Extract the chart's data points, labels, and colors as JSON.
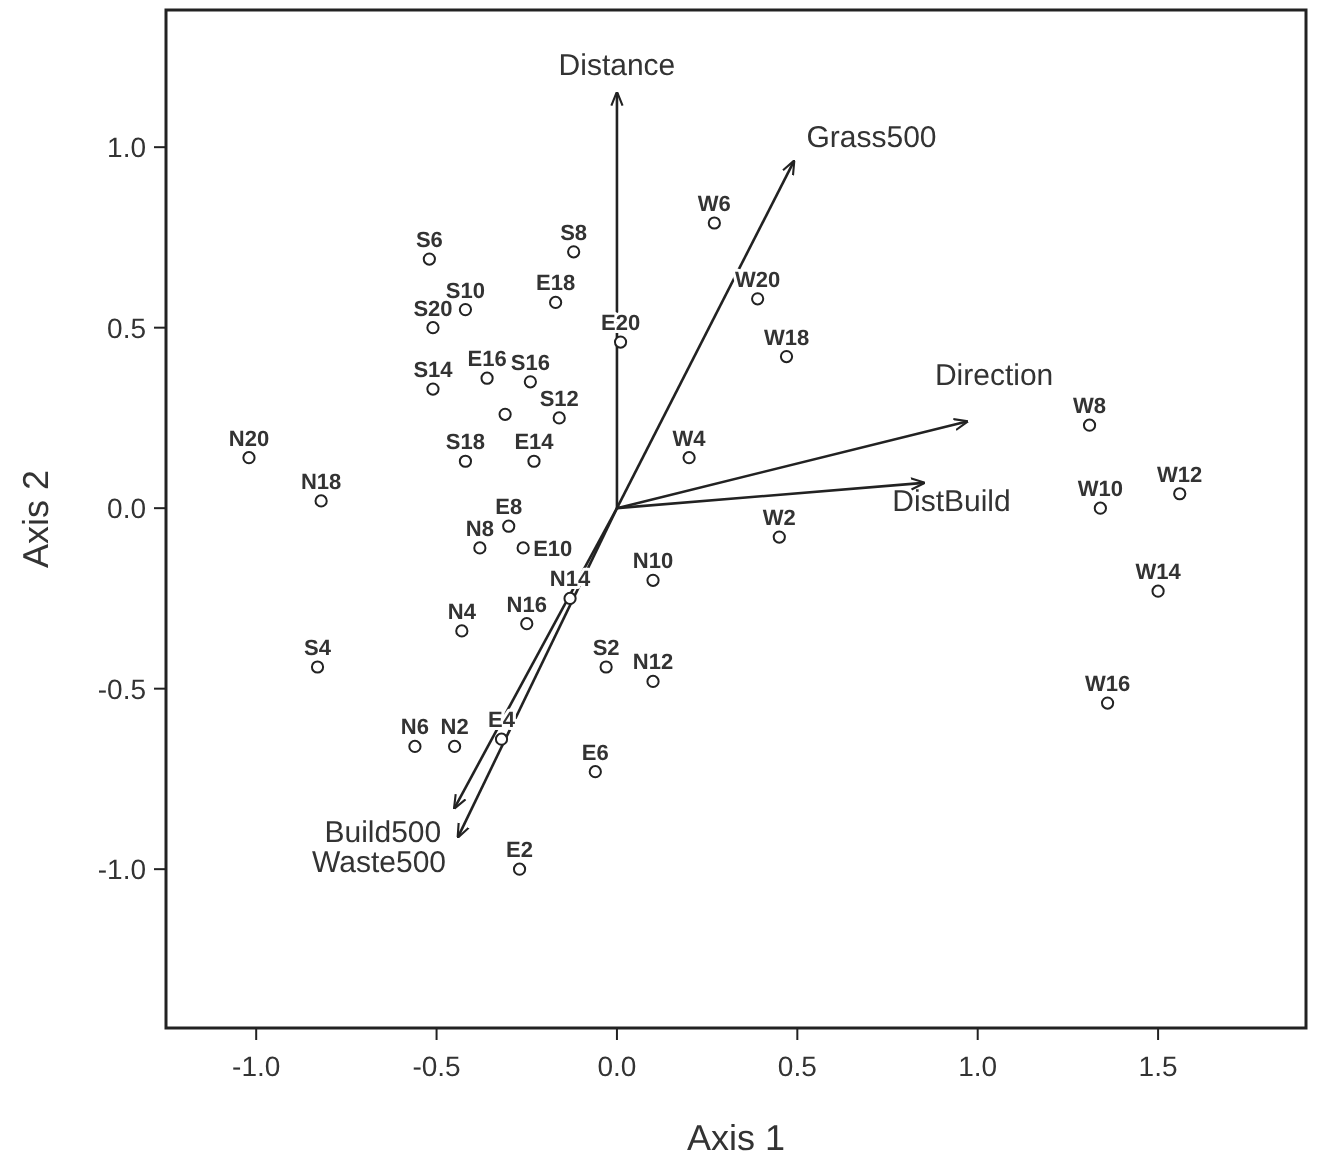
{
  "chart_data": {
    "type": "scatter",
    "xlabel": "Axis 1",
    "ylabel": "Axis 2",
    "xlim": [
      -1.25,
      1.91
    ],
    "ylim": [
      -1.44,
      1.38
    ],
    "xticks": [
      {
        "value": -1,
        "label": "-1.0"
      },
      -0.5,
      {
        "value": 0,
        "label": "0.0"
      },
      0.5,
      {
        "value": 1,
        "label": "1.0"
      },
      1.5
    ],
    "yticks": [
      {
        "value": -1,
        "label": "-1.0"
      },
      -0.5,
      {
        "value": 0,
        "label": "0.0"
      },
      0.5,
      {
        "value": 1,
        "label": "1.0"
      }
    ],
    "grid": false,
    "series": [
      {
        "color": "#222222",
        "marker": "circle",
        "x": [
          0.27,
          -0.52,
          -0.12,
          -0.17,
          -0.42,
          -0.51,
          0.39,
          0.01,
          0.47,
          -0.36,
          -0.24,
          -0.51,
          -0.31,
          -0.16,
          -1.02,
          0.2,
          -0.42,
          -0.23,
          -0.82,
          -0.3,
          0.45,
          -0.38,
          -0.26,
          0.1,
          -0.13,
          -0.43,
          -0.25,
          -0.83,
          -0.03,
          0.1,
          -0.56,
          -0.45,
          -0.32,
          -0.06,
          -0.27,
          1.31,
          1.34,
          1.56,
          1.5,
          1.36
        ],
        "values": [
          0.79,
          0.69,
          0.71,
          0.57,
          0.55,
          0.5,
          0.58,
          0.46,
          0.42,
          0.36,
          0.35,
          0.33,
          0.26,
          0.25,
          0.14,
          0.14,
          0.13,
          0.13,
          0.02,
          -0.05,
          -0.08,
          -0.11,
          -0.11,
          -0.2,
          -0.25,
          -0.34,
          -0.32,
          -0.44,
          -0.44,
          -0.48,
          -0.66,
          -0.66,
          -0.64,
          -0.73,
          -1.0,
          0.23,
          0.0,
          0.04,
          -0.23,
          -0.54
        ]
      },
      {
        "type": "line",
        "name": "Distance",
        "color": "#222222",
        "marker": "none",
        "x": [
          0,
          0.0
        ],
        "values": [
          0,
          1.15
        ]
      },
      {
        "type": "line",
        "name": "Grass500",
        "color": "#222222",
        "marker": "none",
        "x": [
          0,
          0.49
        ],
        "values": [
          0,
          0.96
        ]
      },
      {
        "type": "line",
        "name": "Direction",
        "color": "#222222",
        "marker": "none",
        "x": [
          0,
          0.97
        ],
        "values": [
          0,
          0.24
        ]
      },
      {
        "type": "line",
        "name": "DistBuild",
        "color": "#222222",
        "marker": "none",
        "x": [
          0,
          0.85
        ],
        "values": [
          0,
          0.07
        ]
      },
      {
        "type": "line",
        "name": "Build500",
        "color": "#222222",
        "marker": "none",
        "x": [
          0,
          -0.45
        ],
        "values": [
          0,
          -0.83
        ]
      },
      {
        "type": "line",
        "name": "Waste500",
        "color": "#222222",
        "marker": "none",
        "x": [
          0,
          -0.44
        ],
        "values": [
          0,
          -0.91
        ]
      }
    ],
    "annotations": [
      {
        "text": "W6",
        "x": 0.27,
        "y": 0.79
      },
      {
        "text": "S6",
        "x": -0.52,
        "y": 0.69
      },
      {
        "text": "S8",
        "x": -0.12,
        "y": 0.71
      },
      {
        "text": "E18",
        "x": -0.17,
        "y": 0.57
      },
      {
        "text": "S10",
        "x": -0.42,
        "y": 0.55
      },
      {
        "text": "S20",
        "x": -0.51,
        "y": 0.5
      },
      {
        "text": "W20",
        "x": 0.39,
        "y": 0.58
      },
      {
        "text": "E20",
        "x": 0.01,
        "y": 0.46
      },
      {
        "text": "W18",
        "x": 0.47,
        "y": 0.42
      },
      {
        "text": "E16",
        "x": -0.36,
        "y": 0.36
      },
      {
        "text": "S16",
        "x": -0.24,
        "y": 0.35
      },
      {
        "text": "S14",
        "x": -0.51,
        "y": 0.33
      },
      {
        "text": "S12",
        "x": -0.16,
        "y": 0.25
      },
      {
        "text": "N20",
        "x": -1.02,
        "y": 0.14
      },
      {
        "text": "W4",
        "x": 0.2,
        "y": 0.14
      },
      {
        "text": "S18",
        "x": -0.42,
        "y": 0.13
      },
      {
        "text": "E14",
        "x": -0.23,
        "y": 0.13
      },
      {
        "text": "N18",
        "x": -0.82,
        "y": 0.02
      },
      {
        "text": "E8",
        "x": -0.3,
        "y": -0.05
      },
      {
        "text": "W2",
        "x": 0.45,
        "y": -0.08
      },
      {
        "text": "N8",
        "x": -0.38,
        "y": -0.11
      },
      {
        "text": "E10",
        "x": -0.26,
        "y": -0.11
      },
      {
        "text": "N10",
        "x": 0.1,
        "y": -0.2
      },
      {
        "text": "N14",
        "x": -0.13,
        "y": -0.25
      },
      {
        "text": "N4",
        "x": -0.43,
        "y": -0.34
      },
      {
        "text": "N16",
        "x": -0.25,
        "y": -0.32
      },
      {
        "text": "S4",
        "x": -0.83,
        "y": -0.44
      },
      {
        "text": "S2",
        "x": -0.03,
        "y": -0.44
      },
      {
        "text": "N12",
        "x": 0.1,
        "y": -0.48
      },
      {
        "text": "N6",
        "x": -0.56,
        "y": -0.66
      },
      {
        "text": "N2",
        "x": -0.45,
        "y": -0.66
      },
      {
        "text": "E4",
        "x": -0.32,
        "y": -0.64
      },
      {
        "text": "E6",
        "x": -0.06,
        "y": -0.73
      },
      {
        "text": "E2",
        "x": -0.27,
        "y": -1.0
      },
      {
        "text": "W8",
        "x": 1.31,
        "y": 0.23
      },
      {
        "text": "W10",
        "x": 1.34,
        "y": 0.0
      },
      {
        "text": "W12",
        "x": 1.56,
        "y": 0.04
      },
      {
        "text": "W14",
        "x": 1.5,
        "y": -0.23
      },
      {
        "text": "W16",
        "x": 1.36,
        "y": -0.54
      }
    ]
  }
}
